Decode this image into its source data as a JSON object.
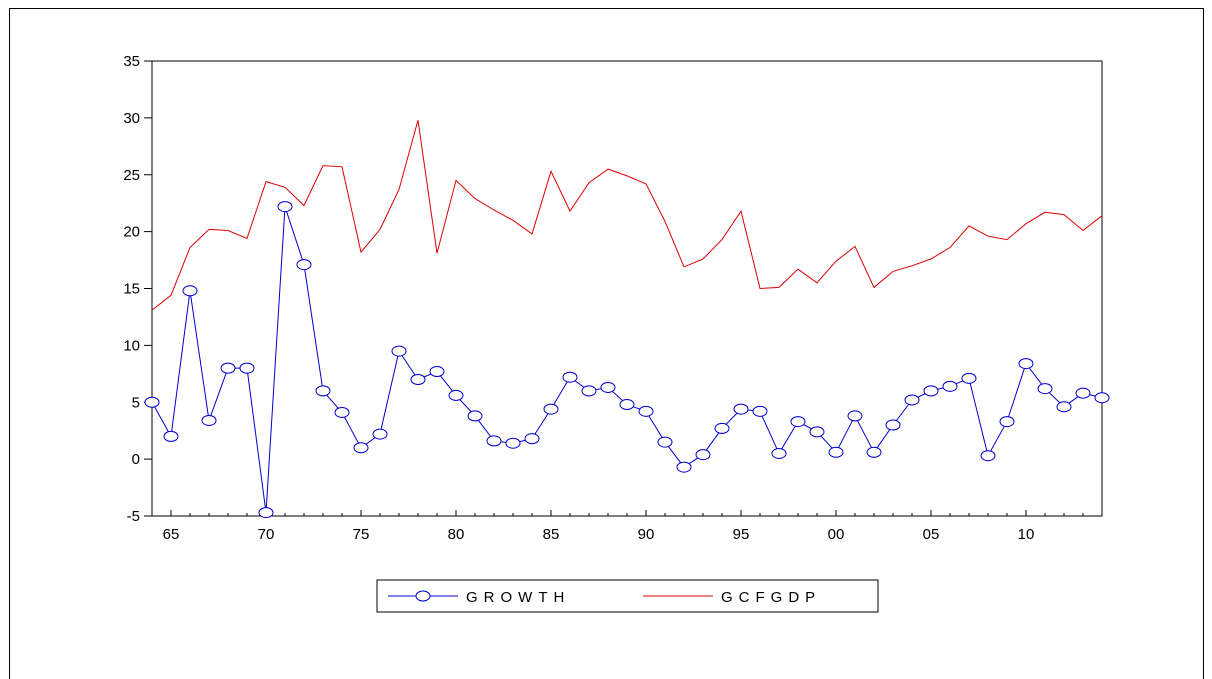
{
  "chart_data": {
    "type": "line",
    "x": [
      1964,
      1965,
      1966,
      1967,
      1968,
      1969,
      1970,
      1971,
      1972,
      1973,
      1974,
      1975,
      1976,
      1977,
      1978,
      1979,
      1980,
      1981,
      1982,
      1983,
      1984,
      1985,
      1986,
      1987,
      1988,
      1989,
      1990,
      1991,
      1992,
      1993,
      1994,
      1995,
      1996,
      1997,
      1998,
      1999,
      2000,
      2001,
      2002,
      2003,
      2004,
      2005,
      2006,
      2007,
      2008,
      2009,
      2010,
      2011,
      2012,
      2013,
      2014
    ],
    "series": [
      {
        "name": "GROWTH",
        "color": "#0000cc",
        "marker": "circle",
        "values": [
          5.0,
          2.0,
          14.8,
          3.4,
          8.0,
          8.0,
          -4.7,
          22.2,
          17.1,
          6.0,
          4.1,
          1.0,
          2.2,
          9.5,
          7.0,
          7.7,
          5.6,
          3.8,
          1.6,
          1.4,
          1.8,
          4.4,
          7.2,
          6.0,
          6.3,
          4.8,
          4.2,
          1.5,
          -0.7,
          0.4,
          2.7,
          4.4,
          4.2,
          0.5,
          3.3,
          2.4,
          0.6,
          3.8,
          0.6,
          3.0,
          5.2,
          6.0,
          6.4,
          7.1,
          0.3,
          3.3,
          8.4,
          6.2,
          4.6,
          5.8,
          5.4
        ]
      },
      {
        "name": "GCFGDP",
        "color": "#dd0000",
        "marker": "none",
        "values": [
          13.1,
          14.4,
          18.6,
          20.2,
          20.1,
          19.4,
          24.4,
          23.9,
          22.3,
          25.8,
          25.7,
          18.2,
          20.2,
          23.7,
          29.8,
          18.1,
          24.5,
          22.9,
          21.9,
          21.0,
          19.8,
          25.3,
          21.8,
          24.3,
          25.5,
          24.9,
          24.2,
          20.9,
          16.9,
          17.6,
          19.3,
          21.8,
          15.0,
          15.1,
          16.7,
          15.5,
          17.4,
          18.7,
          15.1,
          16.5,
          17.0,
          17.6,
          18.6,
          20.5,
          19.6,
          19.3,
          20.7,
          21.7,
          21.5,
          20.1,
          21.4
        ]
      }
    ],
    "x_tick_labels": [
      "65",
      "70",
      "75",
      "80",
      "85",
      "90",
      "95",
      "00",
      "05",
      "10"
    ],
    "x_tick_values": [
      1965,
      1970,
      1975,
      1980,
      1985,
      1990,
      1995,
      2000,
      2005,
      2010
    ],
    "y_ticks": [
      -5,
      0,
      5,
      10,
      15,
      20,
      25,
      30,
      35
    ],
    "y_tick_labels": [
      "-5",
      "0",
      "5",
      "10",
      "15",
      "20",
      "25",
      "30",
      "35"
    ],
    "xlim": [
      1964,
      2014
    ],
    "ylim": [
      -5,
      35
    ],
    "grid": false,
    "legend_position": "bottom",
    "legend": {
      "growth_label": "GROWTH",
      "gcfgdp_label": "GCFGDP"
    }
  }
}
